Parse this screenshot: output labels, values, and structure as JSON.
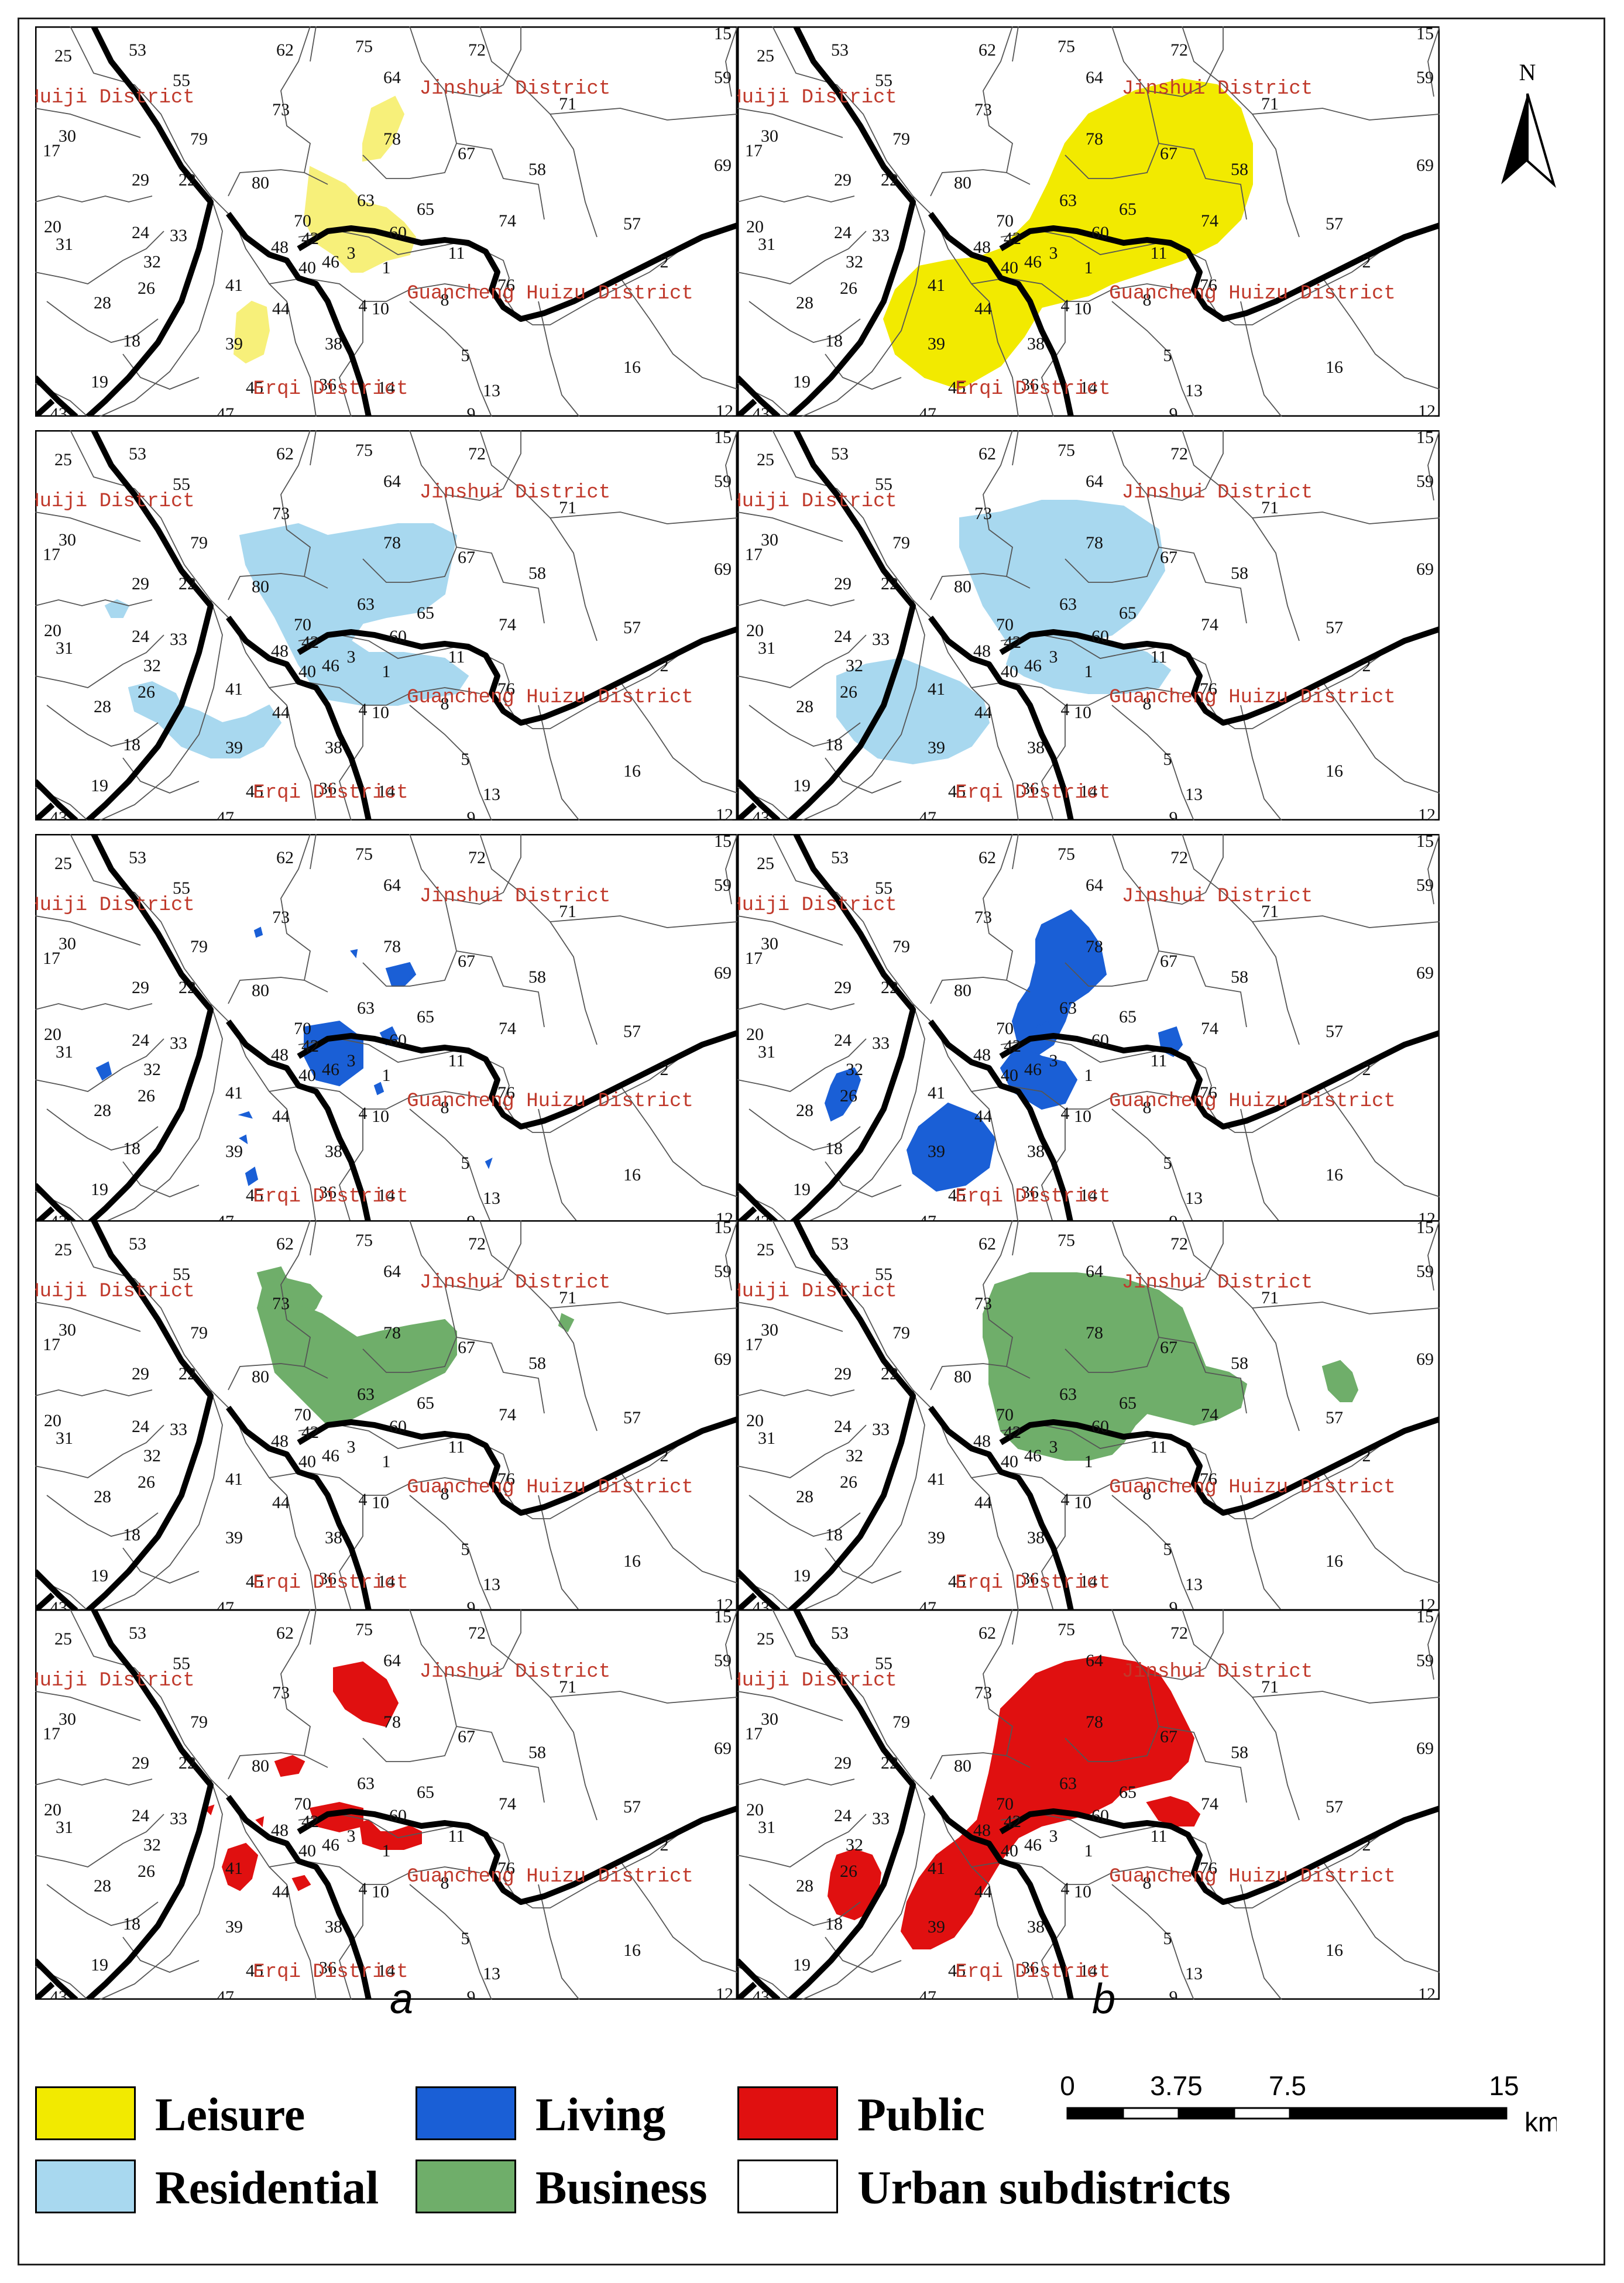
{
  "map": {
    "base_color": "#ffffff",
    "boundary_color": "#000000",
    "subdistrict_line_color": "#555555",
    "district_label_color": "#c0392b",
    "district_labels": [
      "Huiji District",
      "Jinshui District",
      "Guancheng Huizu District",
      "Erqi District"
    ],
    "subdistrict_numbers": [
      "25",
      "53",
      "55",
      "62",
      "75",
      "64",
      "72",
      "71",
      "59",
      "73",
      "30",
      "79",
      "78",
      "67",
      "58",
      "17",
      "29",
      "22",
      "80",
      "63",
      "65",
      "69",
      "20",
      "31",
      "24",
      "33",
      "48",
      "70",
      "42",
      "60",
      "74",
      "57",
      "32",
      "40",
      "46",
      "3",
      "11",
      "2",
      "26",
      "41",
      "1",
      "76",
      "28",
      "44",
      "8",
      "18",
      "39",
      "4",
      "10",
      "38",
      "5",
      "16",
      "19",
      "45",
      "36",
      "14",
      "13",
      "47",
      "9",
      "12",
      "43",
      "15"
    ]
  },
  "columns": {
    "a": "a",
    "b": "b"
  },
  "panels": [
    {
      "row": 0,
      "col": "a",
      "category": "Leisure",
      "color": "#f7f07a"
    },
    {
      "row": 0,
      "col": "b",
      "category": "Leisure",
      "color": "#f2ea00"
    },
    {
      "row": 1,
      "col": "a",
      "category": "Residential",
      "color": "#a8d8ef"
    },
    {
      "row": 1,
      "col": "b",
      "category": "Residential",
      "color": "#a8d8ef"
    },
    {
      "row": 2,
      "col": "a",
      "category": "Living",
      "color": "#1a5fd6"
    },
    {
      "row": 2,
      "col": "b",
      "category": "Living",
      "color": "#1a5fd6"
    },
    {
      "row": 3,
      "col": "a",
      "category": "Business",
      "color": "#6fae6a"
    },
    {
      "row": 3,
      "col": "b",
      "category": "Business",
      "color": "#6fae6a"
    },
    {
      "row": 4,
      "col": "a",
      "category": "Public",
      "color": "#e01010"
    },
    {
      "row": 4,
      "col": "b",
      "category": "Public",
      "color": "#e01010"
    }
  ],
  "legend": [
    {
      "label": "Leisure",
      "color": "#f2ea00"
    },
    {
      "label": "Living",
      "color": "#1a5fd6"
    },
    {
      "label": "Public",
      "color": "#e01010"
    },
    {
      "label": "Residential",
      "color": "#a8d8ef"
    },
    {
      "label": "Business",
      "color": "#6fae6a"
    },
    {
      "label": "Urban subdistricts",
      "color": "#ffffff"
    }
  ],
  "scale_bar": {
    "ticks": [
      "0",
      "3.75",
      "7.5",
      "15"
    ],
    "unit": "km"
  },
  "north_arrow": {
    "label": "N"
  }
}
